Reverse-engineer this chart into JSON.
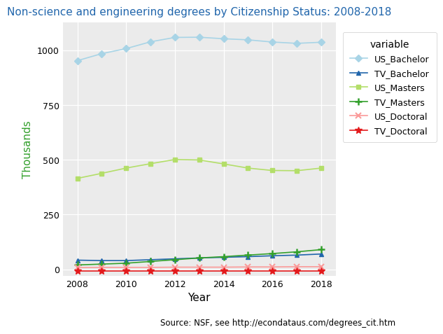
{
  "title": "Non-science and engineering degrees by Citizenship Status: 2008-2018",
  "xlabel": "Year",
  "ylabel": "Thousands",
  "source": "Source: NSF, see http://econdataus.com/degrees_cit.htm",
  "years": [
    2008,
    2009,
    2010,
    2011,
    2012,
    2013,
    2014,
    2015,
    2016,
    2017,
    2018
  ],
  "US_Bachelor": [
    952,
    984,
    1007,
    1038,
    1058,
    1059,
    1052,
    1047,
    1037,
    1031,
    1036
  ],
  "TV_Bachelor": [
    42,
    40,
    40,
    44,
    48,
    52,
    55,
    58,
    62,
    65,
    70
  ],
  "US_Masters": [
    415,
    438,
    462,
    482,
    501,
    499,
    481,
    462,
    451,
    450,
    462
  ],
  "TV_Masters": [
    20,
    24,
    28,
    36,
    44,
    52,
    58,
    65,
    72,
    80,
    90
  ],
  "US_Doctoral": [
    8,
    9,
    9,
    9,
    10,
    10,
    10,
    11,
    11,
    12,
    12
  ],
  "TV_Doctoral": [
    -8,
    -8,
    -8,
    -8,
    -8,
    -8,
    -8,
    -8,
    -8,
    -8,
    -8
  ],
  "colors": {
    "US_Bachelor": "#a8d4e6",
    "TV_Bachelor": "#2166ac",
    "US_Masters": "#b3de69",
    "TV_Masters": "#33a02c",
    "US_Doctoral": "#fb9a99",
    "TV_Doctoral": "#e31a1c"
  },
  "ylabel_color": "#33a02c",
  "title_color": "#2166ac",
  "bg_color": "#ebebeb",
  "fig_bg": "#ffffff",
  "grid_color": "#ffffff",
  "ylim": [
    -30,
    1125
  ],
  "yticks": [
    0,
    250,
    500,
    750,
    1000
  ],
  "xlim": [
    2007.4,
    2018.6
  ],
  "xticks": [
    2008,
    2010,
    2012,
    2014,
    2016,
    2018
  ]
}
